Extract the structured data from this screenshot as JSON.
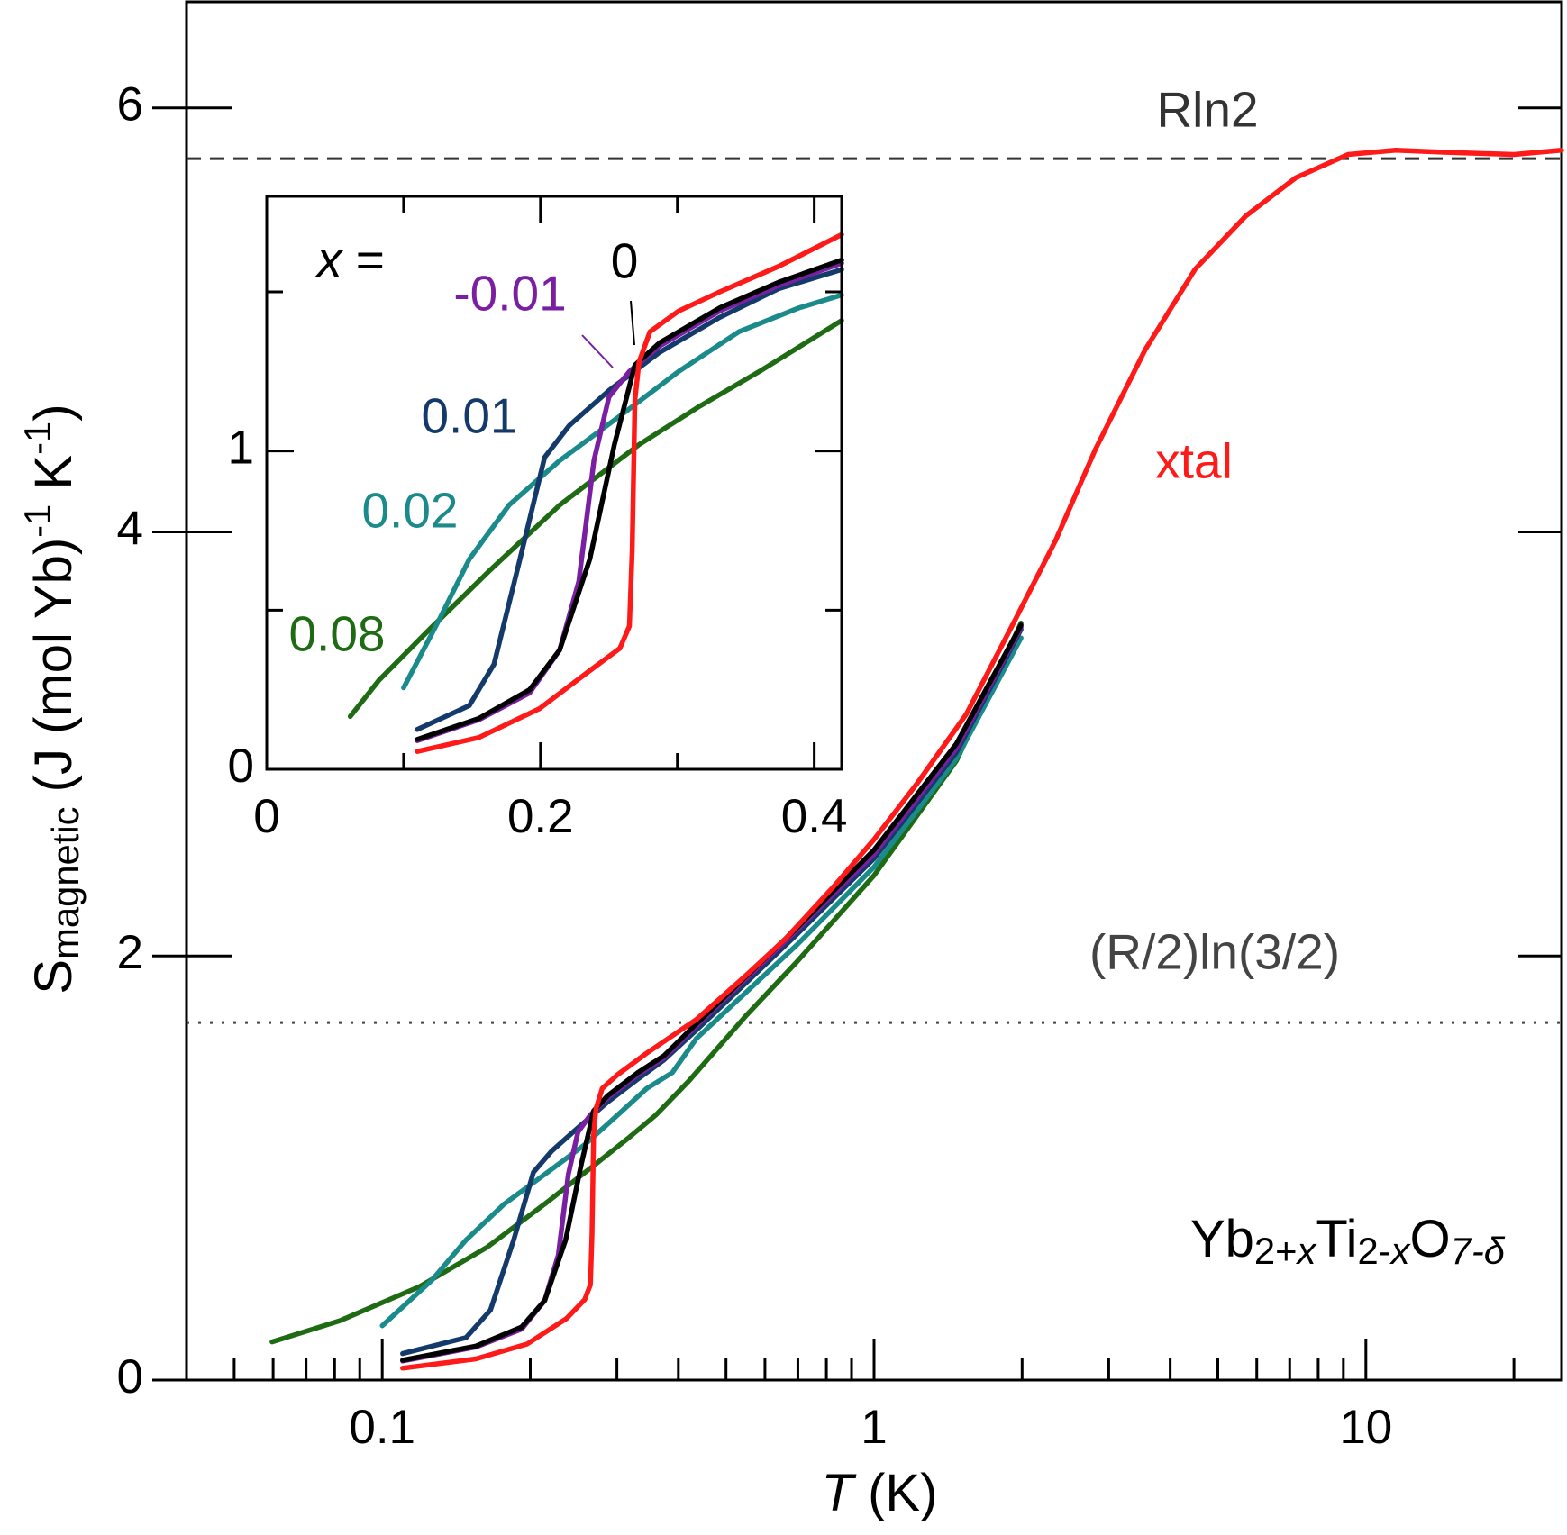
{
  "chart_data": [
    {
      "type": "line",
      "xscale": "log",
      "xlabel_parts": [
        {
          "text": "T",
          "style": "italic"
        },
        {
          "text": " (K)"
        }
      ],
      "ylabel_parts": [
        {
          "text": "S"
        },
        {
          "text": "magnetic",
          "style": "sub"
        },
        {
          "text": " (J (mol Yb)"
        },
        {
          "text": "-1",
          "style": "sup"
        },
        {
          "text": " K"
        },
        {
          "text": "-1",
          "style": "sup"
        },
        {
          "text": ")"
        }
      ],
      "xlim": [
        0.04,
        25
      ],
      "ylim": [
        0,
        6.5
      ],
      "xticks": [
        0.1,
        1,
        10
      ],
      "xminorticks": [
        0.05,
        0.06,
        0.07,
        0.08,
        0.09,
        0.2,
        0.3,
        0.4,
        0.5,
        0.6,
        0.7,
        0.8,
        0.9,
        2,
        3,
        4,
        5,
        6,
        7,
        8,
        9,
        20
      ],
      "yticks": [
        0,
        2,
        4,
        6
      ],
      "reference_lines": [
        {
          "value": 5.76,
          "label": "Rln2",
          "style": "dashed",
          "color": "#333333"
        },
        {
          "value": 1.686,
          "label": "(R/2)ln(3/2)",
          "style": "dotted",
          "color": "#444444"
        }
      ],
      "annotation_parts": [
        {
          "text": "Yb"
        },
        {
          "text": "2+",
          "style": "sub"
        },
        {
          "text": "x",
          "style": "sub-italic"
        },
        {
          "text": "Ti"
        },
        {
          "text": "2-",
          "style": "sub"
        },
        {
          "text": "x",
          "style": "sub-italic"
        },
        {
          "text": "O"
        },
        {
          "text": "7-δ",
          "style": "sub-italic"
        }
      ],
      "series": [
        {
          "color": "#1e6b14",
          "x": [
            0.0597,
            0.082,
            0.119,
            0.163,
            0.214,
            0.272,
            0.316,
            0.36,
            0.42,
            0.55,
            0.695,
            1.0,
            1.47,
            1.99
          ],
          "values": [
            0.18,
            0.28,
            0.44,
            0.625,
            0.83,
            1.02,
            1.14,
            1.25,
            1.41,
            1.72,
            1.97,
            2.38,
            2.92,
            3.57
          ]
        },
        {
          "color": "#1a8a8a",
          "x": [
            0.1,
            0.126,
            0.148,
            0.177,
            0.214,
            0.258,
            0.301,
            0.345,
            0.389,
            0.435,
            0.695,
            1.0,
            1.47,
            1.99
          ],
          "values": [
            0.256,
            0.47,
            0.66,
            0.83,
            0.97,
            1.11,
            1.25,
            1.375,
            1.45,
            1.61,
            2.05,
            2.42,
            2.93,
            3.5
          ]
        },
        {
          "color": "#143a6b",
          "x": [
            0.11,
            0.148,
            0.166,
            0.185,
            0.203,
            0.221,
            0.25,
            0.287,
            0.331,
            0.374,
            0.435,
            0.695,
            1.0,
            1.47,
            1.99
          ],
          "values": [
            0.125,
            0.2,
            0.33,
            0.66,
            0.98,
            1.08,
            1.19,
            1.31,
            1.42,
            1.51,
            1.65,
            2.1,
            2.46,
            2.96,
            3.54
          ]
        },
        {
          "color": "#7a1fa2",
          "x": [
            0.11,
            0.155,
            0.192,
            0.214,
            0.228,
            0.239,
            0.25,
            0.265,
            0.287,
            0.331,
            0.374,
            0.435,
            0.695,
            1.0,
            1.47,
            1.99
          ],
          "values": [
            0.09,
            0.156,
            0.24,
            0.375,
            0.59,
            0.97,
            1.17,
            1.25,
            1.33,
            1.44,
            1.52,
            1.67,
            2.12,
            2.48,
            2.98,
            3.55
          ]
        },
        {
          "color": "#000000",
          "x": [
            0.11,
            0.155,
            0.192,
            0.214,
            0.236,
            0.254,
            0.269,
            0.287,
            0.331,
            0.374,
            0.435,
            0.695,
            1.0,
            1.47,
            1.99
          ],
          "values": [
            0.094,
            0.16,
            0.25,
            0.375,
            0.66,
            1.02,
            1.27,
            1.34,
            1.45,
            1.53,
            1.68,
            2.13,
            2.5,
            3.0,
            3.56
          ]
        },
        {
          "name": "xtal",
          "color": "#ff1a1a",
          "x": [
            0.11,
            0.155,
            0.197,
            0.237,
            0.258,
            0.265,
            0.267,
            0.269,
            0.272,
            0.28,
            0.301,
            0.344,
            0.435,
            0.55,
            0.66,
            0.837,
            1.0,
            1.22,
            1.54,
            1.94,
            2.34,
            2.82,
            3.56,
            4.5,
            5.7,
            7.2,
            9.2,
            11.5,
            14.6,
            20,
            25
          ],
          "values": [
            0.056,
            0.1,
            0.17,
            0.29,
            0.38,
            0.45,
            0.69,
            1.16,
            1.28,
            1.375,
            1.44,
            1.54,
            1.7,
            1.91,
            2.08,
            2.34,
            2.55,
            2.81,
            3.14,
            3.59,
            3.96,
            4.39,
            4.86,
            5.24,
            5.49,
            5.67,
            5.78,
            5.8,
            5.79,
            5.78,
            5.8
          ]
        }
      ]
    },
    {
      "type": "line",
      "xlim": [
        0,
        0.42
      ],
      "ylim": [
        0,
        1.8
      ],
      "xticks": [
        0,
        0.2,
        0.4
      ],
      "xminorticks": [
        0.1,
        0.3
      ],
      "yticks": [
        0,
        1
      ],
      "yminorticks": [
        0.5,
        1.5
      ],
      "legend_title_parts": [
        {
          "text": "x",
          "style": "italic"
        },
        {
          "text": " ="
        }
      ],
      "series": [
        {
          "name": "0.08",
          "color": "#1e6b14",
          "x": [
            0.061,
            0.082,
            0.119,
            0.163,
            0.214,
            0.272,
            0.316,
            0.36,
            0.42
          ],
          "values": [
            0.166,
            0.28,
            0.44,
            0.625,
            0.83,
            1.02,
            1.14,
            1.25,
            1.41
          ]
        },
        {
          "name": "0.02",
          "color": "#1a8a8a",
          "x": [
            0.1,
            0.126,
            0.148,
            0.177,
            0.214,
            0.258,
            0.301,
            0.345,
            0.389,
            0.42
          ],
          "values": [
            0.256,
            0.47,
            0.66,
            0.83,
            0.97,
            1.11,
            1.25,
            1.375,
            1.45,
            1.49
          ]
        },
        {
          "name": "0.01",
          "color": "#143a6b",
          "x": [
            0.11,
            0.148,
            0.166,
            0.185,
            0.203,
            0.221,
            0.25,
            0.287,
            0.331,
            0.374,
            0.42
          ],
          "values": [
            0.125,
            0.2,
            0.33,
            0.66,
            0.98,
            1.08,
            1.19,
            1.31,
            1.42,
            1.51,
            1.57
          ]
        },
        {
          "name": "-0.01",
          "color": "#7a1fa2",
          "x": [
            0.11,
            0.155,
            0.192,
            0.214,
            0.228,
            0.239,
            0.25,
            0.265,
            0.287,
            0.331,
            0.374,
            0.42
          ],
          "values": [
            0.09,
            0.156,
            0.24,
            0.375,
            0.59,
            0.97,
            1.17,
            1.25,
            1.33,
            1.44,
            1.52,
            1.59
          ]
        },
        {
          "name": "0",
          "color": "#000000",
          "x": [
            0.11,
            0.155,
            0.192,
            0.214,
            0.236,
            0.254,
            0.269,
            0.287,
            0.331,
            0.374,
            0.42
          ],
          "values": [
            0.094,
            0.16,
            0.25,
            0.375,
            0.66,
            1.02,
            1.27,
            1.34,
            1.45,
            1.53,
            1.6
          ]
        },
        {
          "color": "#ff1a1a",
          "x": [
            0.11,
            0.155,
            0.199,
            0.236,
            0.258,
            0.265,
            0.267,
            0.269,
            0.272,
            0.28,
            0.301,
            0.331,
            0.374,
            0.42
          ],
          "values": [
            0.056,
            0.1,
            0.19,
            0.31,
            0.38,
            0.45,
            0.69,
            1.16,
            1.28,
            1.375,
            1.44,
            1.5,
            1.58,
            1.68
          ]
        }
      ]
    }
  ]
}
